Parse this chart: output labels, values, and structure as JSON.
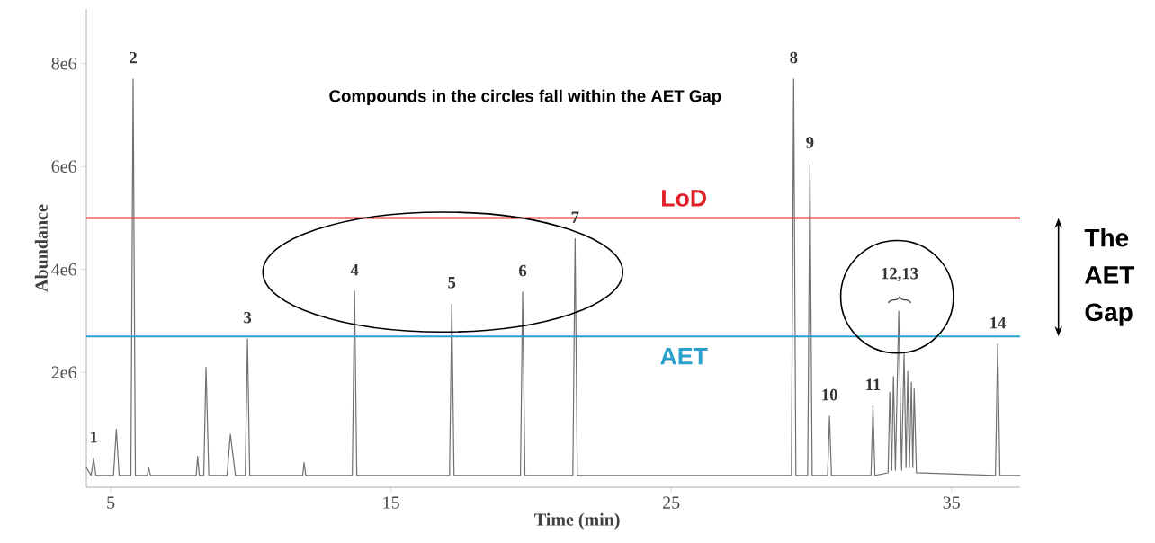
{
  "chart_data": {
    "type": "line",
    "xlabel": "Time (min)",
    "ylabel": "Abundance",
    "x": [
      4.13,
      4.3,
      4.39,
      4.47,
      5.1,
      5.2,
      5.3,
      5.72,
      5.8,
      5.88,
      6.3,
      6.35,
      6.42,
      8.05,
      8.1,
      8.16,
      8.32,
      8.4,
      8.5,
      9.15,
      9.27,
      9.45,
      9.8,
      9.88,
      9.96,
      11.85,
      11.9,
      11.96,
      13.62,
      13.7,
      13.78,
      17.09,
      17.17,
      17.25,
      19.62,
      19.7,
      19.78,
      21.49,
      21.57,
      21.65,
      29.29,
      29.37,
      29.45,
      29.87,
      29.95,
      30.03,
      30.58,
      30.65,
      30.72,
      32.13,
      32.2,
      32.27,
      32.74,
      32.8,
      32.87,
      32.93,
      33.0,
      33.12,
      33.22,
      33.31,
      33.38,
      33.44,
      33.5,
      33.57,
      33.62,
      33.67,
      33.75,
      36.57,
      36.65,
      36.73,
      37.45
    ],
    "values": [
      150000,
      0,
      330000,
      0,
      0,
      900000,
      0,
      0,
      7700000,
      0,
      0,
      150000,
      0,
      0,
      370000,
      0,
      0,
      2100000,
      0,
      0,
      800000,
      0,
      0,
      2650000,
      0,
      0,
      250000,
      0,
      0,
      3580000,
      0,
      0,
      3330000,
      0,
      0,
      3560000,
      0,
      0,
      4600000,
      0,
      0,
      7700000,
      0,
      0,
      6050000,
      0,
      0,
      1150000,
      0,
      0,
      1350000,
      0,
      50000,
      1620000,
      100000,
      1920000,
      100000,
      3190000,
      100000,
      2360000,
      150000,
      2020000,
      150000,
      1810000,
      150000,
      1680000,
      50000,
      0,
      2550000,
      0,
      0
    ],
    "color": "#707070",
    "marker": "none",
    "line_style": "solid",
    "xlim": [
      4.13,
      37.45
    ],
    "ylim": [
      -230000,
      9060000
    ],
    "xticks": [
      5,
      15,
      25,
      35
    ],
    "yticks": [
      {
        "value": 2000000,
        "label": "2e6"
      },
      {
        "value": 4000000,
        "label": "4e6"
      },
      {
        "value": 6000000,
        "label": "6e6"
      },
      {
        "value": 8000000,
        "label": "8e6"
      }
    ],
    "ref_lines": [
      {
        "axis": "y",
        "value": 5000000,
        "label": "LoD",
        "color": "#e02028"
      },
      {
        "axis": "y",
        "value": 2700000,
        "label": "AET",
        "color": "#2aa0cc"
      }
    ],
    "annotations": [
      "Compounds in the circles fall within the AET Gap",
      "12,13",
      "The AET Gap",
      {
        "text": "1",
        "x": 4.39,
        "y": 330000
      },
      {
        "text": "2",
        "x": 5.8,
        "y": 7700000
      },
      {
        "text": "3",
        "x": 9.88,
        "y": 2650000
      },
      {
        "text": "4",
        "x": 13.7,
        "y": 3580000
      },
      {
        "text": "5",
        "x": 17.17,
        "y": 3330000
      },
      {
        "text": "6",
        "x": 19.7,
        "y": 3560000
      },
      {
        "text": "7",
        "x": 21.57,
        "y": 4600000
      },
      {
        "text": "8",
        "x": 29.37,
        "y": 7700000
      },
      {
        "text": "9",
        "x": 29.95,
        "y": 6050000
      },
      {
        "text": "10",
        "x": 30.65,
        "y": 1150000
      },
      {
        "text": "11",
        "x": 32.2,
        "y": 1350000
      },
      {
        "text": "14",
        "x": 36.65,
        "y": 2550000
      }
    ]
  }
}
